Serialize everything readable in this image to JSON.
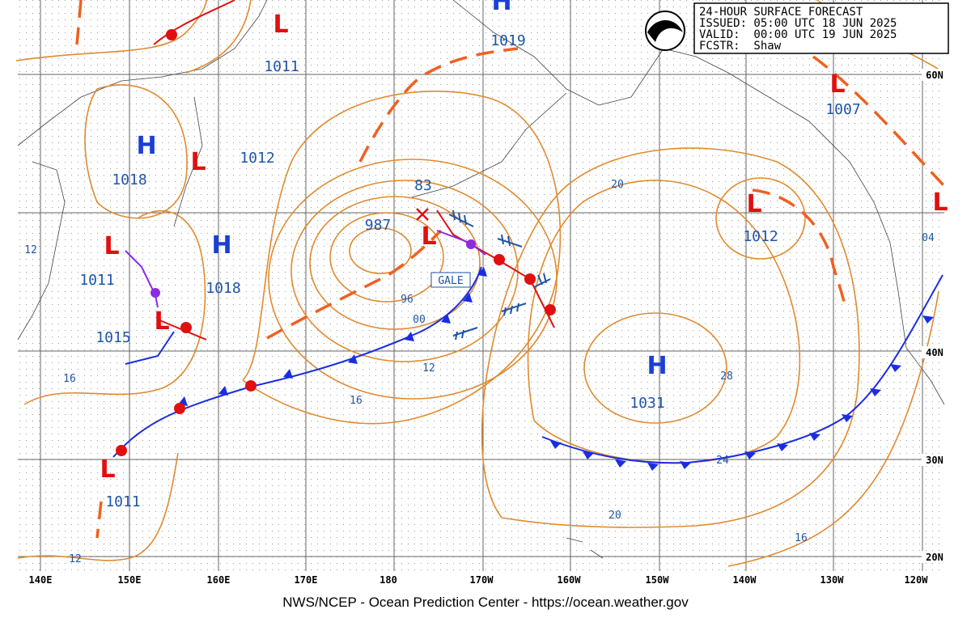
{
  "header": {
    "lines": [
      "24-HOUR SURFACE FORECAST",
      "ISSUED: 05:00 UTC 18 JUN 2025",
      "VALID:  00:00 UTC 19 JUN 2025",
      "FCSTR:  Shaw"
    ]
  },
  "centers": [
    {
      "symbol": "H",
      "pressure": "1018"
    },
    {
      "symbol": "L",
      "pressure": "1012"
    },
    {
      "symbol": "H",
      "pressure": "1018"
    },
    {
      "symbol": "L",
      "pressure": "1011"
    },
    {
      "symbol": "L",
      "pressure": "1015"
    },
    {
      "symbol": "L",
      "pressure": "1011"
    },
    {
      "symbol": "H",
      "pressure": "1019"
    },
    {
      "symbol": "L",
      "pressure": "987"
    },
    {
      "symbol": "L",
      "pressure": "1012"
    },
    {
      "symbol": "L",
      "pressure": "1007"
    },
    {
      "symbol": "H",
      "pressure": "1031"
    },
    {
      "symbol": "L",
      "pressure": "1011"
    },
    {
      "symbol": "L"
    }
  ],
  "partial_pressure_label": "83",
  "gale": "GALE",
  "isobar_labels": [
    "12",
    "16",
    "12",
    "96",
    "00",
    "12",
    "16",
    "20",
    "28",
    "24",
    "20",
    "16",
    "04"
  ],
  "longitude_labels": [
    "140E",
    "150E",
    "160E",
    "170E",
    "180",
    "170W",
    "160W",
    "150W",
    "140W",
    "130W",
    "120W"
  ],
  "latitude_labels": [
    "60N",
    "40N",
    "30N",
    "20N"
  ],
  "footer": "NWS/NCEP - Ocean Prediction Center - https://ocean.weather.gov"
}
